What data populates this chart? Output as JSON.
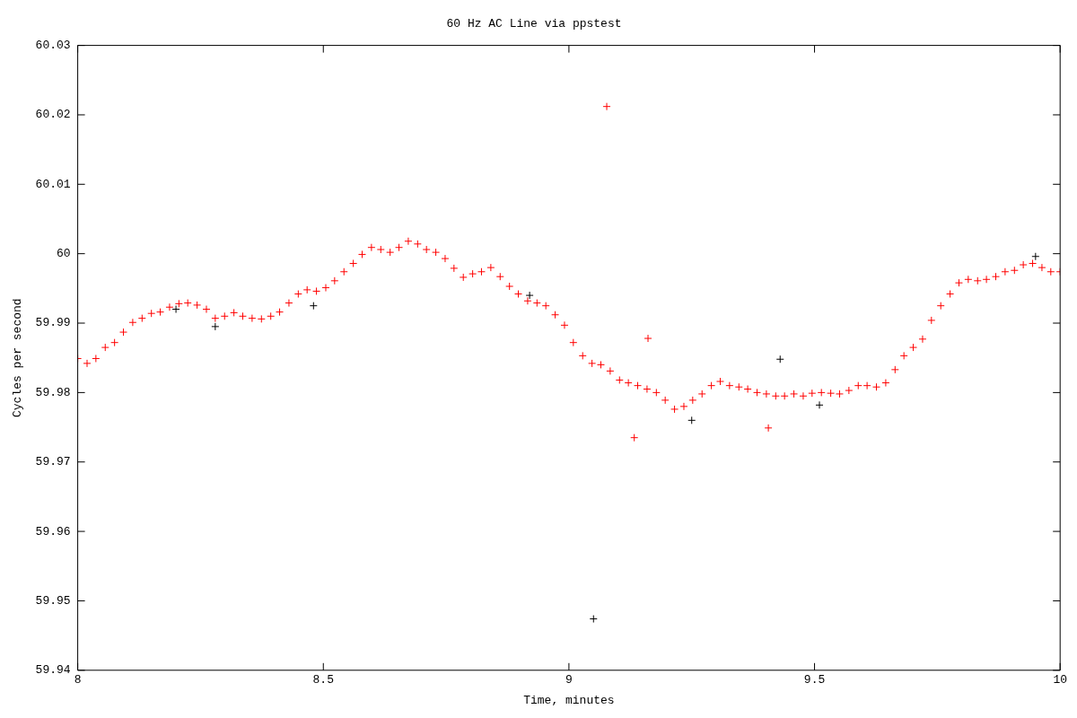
{
  "chart_data": {
    "type": "scatter",
    "title": "60 Hz AC Line via ppstest",
    "xlabel": "Time, minutes",
    "ylabel": "Cycles per second",
    "xlim": [
      8,
      10
    ],
    "xticks": [
      8,
      8.5,
      9,
      9.5,
      10
    ],
    "ylim": [
      59.94,
      60.03
    ],
    "yticks": [
      59.94,
      59.95,
      59.96,
      59.97,
      59.98,
      59.99,
      60,
      60.01,
      60.02,
      60.03
    ],
    "grid": false,
    "legend": false,
    "marker": "cross",
    "series": [
      {
        "color": "#ff0000",
        "x": [
          8.0,
          8.019,
          8.037,
          8.056,
          8.075,
          8.093,
          8.112,
          8.131,
          8.15,
          8.168,
          8.187,
          8.206,
          8.224,
          8.243,
          8.262,
          8.28,
          8.299,
          8.318,
          8.336,
          8.355,
          8.374,
          8.393,
          8.411,
          8.43,
          8.449,
          8.467,
          8.486,
          8.505,
          8.523,
          8.542,
          8.561,
          8.579,
          8.598,
          8.617,
          8.636,
          8.654,
          8.673,
          8.692,
          8.71,
          8.729,
          8.748,
          8.766,
          8.785,
          8.804,
          8.822,
          8.841,
          8.86,
          8.879,
          8.897,
          8.916,
          8.935,
          8.953,
          8.972,
          8.991,
          9.009,
          9.028,
          9.047,
          9.065,
          9.084,
          9.103,
          9.121,
          9.14,
          9.159,
          9.178,
          9.196,
          9.215,
          9.234,
          9.252,
          9.271,
          9.29,
          9.308,
          9.327,
          9.346,
          9.364,
          9.383,
          9.402,
          9.421,
          9.439,
          9.458,
          9.477,
          9.495,
          9.514,
          9.533,
          9.551,
          9.57,
          9.589,
          9.607,
          9.626,
          9.645,
          9.664,
          9.682,
          9.701,
          9.72,
          9.738,
          9.757,
          9.776,
          9.794,
          9.813,
          9.832,
          9.85,
          9.869,
          9.888,
          9.907,
          9.925,
          9.944,
          9.963,
          9.981,
          10.0,
          9.077,
          9.161,
          9.133,
          9.406
        ],
        "values": [
          59.9849,
          59.9842,
          59.9849,
          59.9865,
          59.9872,
          59.9887,
          59.9901,
          59.9907,
          59.9914,
          59.9916,
          59.9923,
          59.9928,
          59.9929,
          59.9926,
          59.992,
          59.9907,
          59.991,
          59.9915,
          59.991,
          59.9907,
          59.9906,
          59.991,
          59.9916,
          59.9929,
          59.9942,
          59.9948,
          59.9946,
          59.9951,
          59.9961,
          59.9974,
          59.9986,
          59.9999,
          60.0009,
          60.0006,
          60.0002,
          60.0009,
          60.0018,
          60.0014,
          60.0006,
          60.0002,
          59.9993,
          59.9979,
          59.9966,
          59.9971,
          59.9974,
          59.998,
          59.9967,
          59.9953,
          59.9942,
          59.9932,
          59.9929,
          59.9925,
          59.9912,
          59.9897,
          59.9872,
          59.9853,
          59.9842,
          59.984,
          59.9831,
          59.9818,
          59.9814,
          59.981,
          59.9805,
          59.98,
          59.9789,
          59.9776,
          59.978,
          59.9789,
          59.9798,
          59.981,
          59.9816,
          59.981,
          59.9808,
          59.9805,
          59.98,
          59.9798,
          59.9795,
          59.9795,
          59.9798,
          59.9795,
          59.9799,
          59.98,
          59.9799,
          59.9798,
          59.9803,
          59.981,
          59.981,
          59.9808,
          59.9814,
          59.9833,
          59.9853,
          59.9865,
          59.9877,
          59.9904,
          59.9925,
          59.9942,
          59.9958,
          59.9963,
          59.9961,
          59.9963,
          59.9967,
          59.9974,
          59.9976,
          59.9984,
          59.9986,
          59.998,
          59.9974,
          59.9974,
          60.0212,
          59.9878,
          59.9735,
          59.9749
        ]
      },
      {
        "color": "#000000",
        "x": [
          8.2,
          8.28,
          8.48,
          8.92,
          9.05,
          9.25,
          9.43,
          9.51,
          9.95
        ],
        "values": [
          59.992,
          59.9895,
          59.9925,
          59.994,
          59.9474,
          59.976,
          59.9848,
          59.9782,
          59.9996
        ]
      }
    ]
  }
}
